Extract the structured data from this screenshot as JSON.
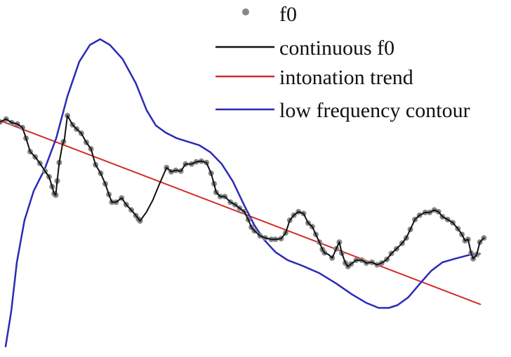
{
  "chart_data": {
    "type": "line",
    "title": "",
    "xlabel": "",
    "ylabel": "",
    "xlim": [
      0,
      100
    ],
    "ylim": [
      0,
      100
    ],
    "grid": false,
    "axes_visible": false,
    "legend_position": "top-right",
    "legend": [
      {
        "name": "f0",
        "marker": "dot",
        "color": "#888888"
      },
      {
        "name": "continuous f0",
        "marker": "line",
        "color": "#111111"
      },
      {
        "name": "intonation trend",
        "marker": "line",
        "color": "#d42a2a"
      },
      {
        "name": "low frequency contour",
        "marker": "line",
        "color": "#2a2ab8"
      }
    ],
    "series": [
      {
        "name": "f0",
        "color": "#888888",
        "points": [
          [
            0.0,
            65.5
          ],
          [
            1.2,
            66.3
          ],
          [
            2.3,
            65.3
          ],
          [
            3.4,
            64.9
          ],
          [
            4.4,
            63.9
          ],
          [
            5.1,
            60.9
          ],
          [
            5.9,
            57.1
          ],
          [
            6.9,
            55.6
          ],
          [
            7.8,
            53.8
          ],
          [
            8.8,
            51.6
          ],
          [
            9.6,
            50.0
          ],
          [
            10.2,
            47.2
          ],
          [
            10.6,
            45.2
          ],
          [
            10.9,
            44.8
          ],
          [
            11.2,
            48.8
          ],
          [
            11.6,
            54.0
          ],
          [
            12.4,
            59.9
          ],
          [
            13.2,
            67.3
          ],
          [
            14.2,
            64.7
          ],
          [
            15.0,
            63.5
          ],
          [
            15.9,
            62.3
          ],
          [
            16.9,
            59.7
          ],
          [
            17.8,
            57.9
          ],
          [
            18.7,
            53.4
          ],
          [
            19.7,
            51.0
          ],
          [
            20.6,
            48.0
          ],
          [
            21.3,
            45.0
          ],
          [
            21.9,
            42.8
          ],
          [
            22.7,
            42.8
          ],
          [
            23.8,
            44.0
          ],
          [
            24.7,
            42.1
          ],
          [
            25.7,
            40.6
          ],
          [
            26.6,
            39.0
          ],
          [
            27.1,
            38.0
          ],
          [
            27.4,
            37.5
          ],
          [
            32.6,
            52.6
          ],
          [
            33.5,
            51.4
          ],
          [
            34.4,
            51.8
          ],
          [
            35.4,
            51.6
          ],
          [
            36.3,
            53.6
          ],
          [
            37.5,
            53.6
          ],
          [
            38.4,
            54.2
          ],
          [
            39.4,
            54.4
          ],
          [
            40.4,
            54.0
          ],
          [
            41.3,
            51.0
          ],
          [
            41.9,
            48.0
          ],
          [
            42.3,
            45.6
          ],
          [
            43.1,
            44.4
          ],
          [
            44.0,
            44.4
          ],
          [
            45.1,
            42.8
          ],
          [
            46.0,
            42.1
          ],
          [
            46.9,
            41.1
          ],
          [
            47.8,
            40.1
          ],
          [
            48.6,
            37.9
          ],
          [
            49.2,
            35.7
          ],
          [
            49.8,
            34.7
          ],
          [
            50.9,
            33.3
          ],
          [
            51.9,
            32.7
          ],
          [
            53.1,
            32.3
          ],
          [
            53.9,
            32.3
          ],
          [
            55.0,
            32.5
          ],
          [
            55.9,
            34.1
          ],
          [
            56.7,
            37.7
          ],
          [
            57.5,
            39.1
          ],
          [
            58.4,
            40.1
          ],
          [
            59.4,
            39.6
          ],
          [
            60.3,
            36.9
          ],
          [
            61.1,
            35.9
          ],
          [
            61.8,
            33.7
          ],
          [
            62.5,
            31.5
          ],
          [
            63.1,
            29.4
          ],
          [
            63.5,
            28.5
          ],
          [
            65.0,
            27.0
          ],
          [
            65.8,
            29.6
          ],
          [
            66.4,
            31.5
          ],
          [
            66.9,
            28.4
          ],
          [
            67.6,
            25.6
          ],
          [
            68.1,
            24.6
          ],
          [
            68.7,
            25.3
          ],
          [
            69.7,
            26.4
          ],
          [
            70.8,
            26.4
          ],
          [
            71.7,
            25.6
          ],
          [
            72.8,
            25.8
          ],
          [
            73.8,
            25.1
          ],
          [
            74.7,
            25.6
          ],
          [
            75.7,
            26.6
          ],
          [
            76.6,
            28.3
          ],
          [
            77.6,
            29.6
          ],
          [
            78.7,
            31.2
          ],
          [
            79.5,
            32.7
          ],
          [
            80.3,
            35.1
          ],
          [
            81.2,
            37.9
          ],
          [
            82.1,
            39.1
          ],
          [
            83.2,
            39.9
          ],
          [
            84.1,
            39.9
          ],
          [
            85.0,
            40.6
          ],
          [
            85.8,
            40.1
          ],
          [
            86.6,
            38.7
          ],
          [
            87.6,
            37.9
          ],
          [
            88.6,
            37.0
          ],
          [
            89.6,
            35.3
          ],
          [
            90.4,
            33.7
          ],
          [
            91.0,
            31.9
          ],
          [
            91.6,
            32.3
          ],
          [
            92.2,
            28.4
          ],
          [
            92.6,
            26.8
          ],
          [
            93.3,
            28.0
          ],
          [
            93.9,
            31.5
          ],
          [
            94.7,
            32.7
          ]
        ]
      },
      {
        "name": "continuous f0",
        "color": "#111111",
        "points": [
          [
            0.0,
            65.5
          ],
          [
            1.2,
            66.3
          ],
          [
            2.3,
            65.3
          ],
          [
            3.4,
            64.9
          ],
          [
            4.4,
            63.9
          ],
          [
            5.1,
            60.9
          ],
          [
            5.9,
            57.1
          ],
          [
            6.9,
            55.6
          ],
          [
            7.8,
            53.8
          ],
          [
            8.8,
            51.6
          ],
          [
            9.6,
            50.0
          ],
          [
            10.2,
            47.2
          ],
          [
            10.6,
            45.2
          ],
          [
            10.9,
            44.8
          ],
          [
            11.2,
            48.8
          ],
          [
            11.6,
            54.0
          ],
          [
            12.2,
            58.9
          ],
          [
            12.6,
            60.5
          ],
          [
            13.2,
            67.3
          ],
          [
            14.2,
            64.7
          ],
          [
            15.0,
            63.5
          ],
          [
            15.9,
            62.3
          ],
          [
            16.9,
            59.7
          ],
          [
            17.8,
            57.9
          ],
          [
            18.7,
            53.4
          ],
          [
            19.7,
            51.0
          ],
          [
            20.6,
            48.0
          ],
          [
            21.3,
            45.0
          ],
          [
            21.9,
            42.8
          ],
          [
            22.7,
            42.8
          ],
          [
            23.8,
            44.0
          ],
          [
            24.7,
            42.1
          ],
          [
            25.7,
            40.6
          ],
          [
            26.6,
            39.0
          ],
          [
            27.4,
            37.5
          ],
          [
            28.7,
            40.1
          ],
          [
            29.9,
            43.4
          ],
          [
            31.1,
            47.6
          ],
          [
            32.6,
            52.6
          ],
          [
            33.5,
            51.4
          ],
          [
            34.4,
            51.8
          ],
          [
            35.4,
            51.6
          ],
          [
            36.3,
            53.6
          ],
          [
            37.5,
            53.6
          ],
          [
            38.4,
            54.2
          ],
          [
            39.4,
            54.4
          ],
          [
            40.4,
            54.0
          ],
          [
            41.3,
            51.0
          ],
          [
            41.9,
            48.0
          ],
          [
            42.3,
            45.6
          ],
          [
            43.1,
            44.4
          ],
          [
            44.0,
            44.4
          ],
          [
            45.1,
            42.8
          ],
          [
            46.0,
            42.1
          ],
          [
            46.9,
            41.1
          ],
          [
            47.8,
            40.1
          ],
          [
            48.6,
            37.9
          ],
          [
            49.2,
            35.7
          ],
          [
            49.8,
            34.7
          ],
          [
            50.9,
            33.3
          ],
          [
            51.9,
            32.7
          ],
          [
            53.1,
            32.3
          ],
          [
            53.9,
            32.3
          ],
          [
            55.0,
            32.5
          ],
          [
            55.9,
            34.1
          ],
          [
            56.7,
            37.7
          ],
          [
            57.5,
            39.1
          ],
          [
            58.4,
            40.1
          ],
          [
            59.4,
            39.6
          ],
          [
            60.3,
            36.9
          ],
          [
            61.1,
            35.9
          ],
          [
            61.8,
            33.7
          ],
          [
            62.5,
            31.5
          ],
          [
            63.1,
            29.4
          ],
          [
            63.5,
            28.5
          ],
          [
            64.3,
            28.0
          ],
          [
            65.0,
            27.0
          ],
          [
            65.8,
            29.6
          ],
          [
            66.4,
            31.5
          ],
          [
            66.9,
            28.4
          ],
          [
            67.6,
            25.6
          ],
          [
            68.1,
            24.6
          ],
          [
            68.7,
            25.3
          ],
          [
            69.7,
            26.4
          ],
          [
            70.8,
            26.4
          ],
          [
            71.7,
            25.6
          ],
          [
            72.8,
            25.8
          ],
          [
            73.8,
            25.1
          ],
          [
            74.7,
            25.6
          ],
          [
            75.7,
            26.6
          ],
          [
            76.6,
            28.3
          ],
          [
            77.6,
            29.6
          ],
          [
            78.7,
            31.2
          ],
          [
            79.5,
            32.7
          ],
          [
            80.3,
            35.1
          ],
          [
            81.2,
            37.9
          ],
          [
            82.1,
            39.1
          ],
          [
            83.2,
            39.9
          ],
          [
            84.1,
            39.9
          ],
          [
            85.0,
            40.6
          ],
          [
            85.8,
            40.1
          ],
          [
            86.6,
            38.7
          ],
          [
            87.6,
            37.9
          ],
          [
            88.6,
            37.0
          ],
          [
            89.6,
            35.3
          ],
          [
            90.4,
            33.7
          ],
          [
            91.0,
            31.9
          ],
          [
            91.6,
            32.3
          ],
          [
            92.2,
            28.4
          ],
          [
            92.6,
            26.8
          ],
          [
            93.3,
            28.0
          ],
          [
            93.9,
            31.5
          ],
          [
            94.7,
            32.7
          ]
        ]
      },
      {
        "name": "intonation trend",
        "color": "#d42a2a",
        "points": [
          [
            0.0,
            65.9
          ],
          [
            94.0,
            13.9
          ]
        ]
      },
      {
        "name": "low frequency contour",
        "color": "#2a2ab8",
        "points": [
          [
            1.1,
            2.0
          ],
          [
            2.2,
            11.9
          ],
          [
            3.3,
            25.8
          ],
          [
            4.8,
            37.7
          ],
          [
            6.6,
            46.0
          ],
          [
            8.7,
            52.0
          ],
          [
            11.0,
            60.9
          ],
          [
            13.2,
            72.8
          ],
          [
            15.5,
            82.5
          ],
          [
            17.6,
            87.3
          ],
          [
            19.6,
            88.9
          ],
          [
            21.5,
            87.3
          ],
          [
            24.0,
            83.3
          ],
          [
            26.6,
            76.4
          ],
          [
            28.7,
            68.8
          ],
          [
            30.5,
            64.5
          ],
          [
            32.4,
            62.5
          ],
          [
            34.6,
            60.9
          ],
          [
            36.8,
            59.9
          ],
          [
            39.0,
            58.9
          ],
          [
            41.2,
            56.9
          ],
          [
            43.4,
            53.6
          ],
          [
            45.6,
            48.6
          ],
          [
            47.8,
            41.9
          ],
          [
            49.7,
            36.5
          ],
          [
            51.6,
            32.3
          ],
          [
            53.9,
            28.7
          ],
          [
            56.3,
            26.4
          ],
          [
            59.2,
            24.8
          ],
          [
            62.4,
            22.8
          ],
          [
            65.8,
            19.8
          ],
          [
            68.9,
            16.7
          ],
          [
            71.7,
            14.3
          ],
          [
            74.1,
            12.9
          ],
          [
            76.1,
            12.9
          ],
          [
            77.8,
            13.7
          ],
          [
            79.9,
            15.9
          ],
          [
            82.2,
            19.8
          ],
          [
            84.4,
            23.4
          ],
          [
            86.6,
            25.8
          ],
          [
            89.0,
            26.8
          ],
          [
            91.6,
            27.8
          ],
          [
            93.9,
            28.2
          ]
        ]
      }
    ]
  }
}
